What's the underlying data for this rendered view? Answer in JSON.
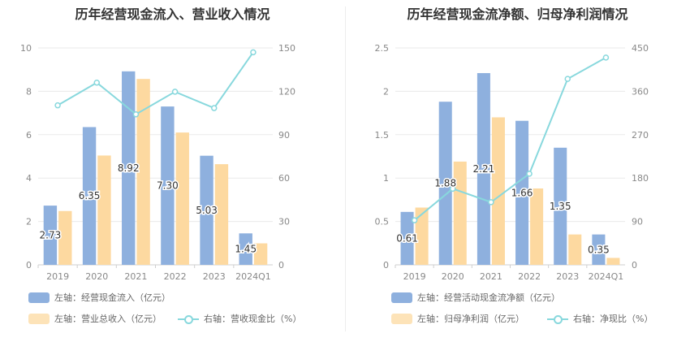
{
  "charts": [
    {
      "title": "历年经营现金流入、营业收入情况",
      "chart_data": {
        "type": "bar",
        "categories": [
          "2019",
          "2020",
          "2021",
          "2022",
          "2023",
          "2024Q1"
        ],
        "left_axis": {
          "ylim": [
            0,
            10
          ],
          "ticks": [
            "0",
            "2",
            "4",
            "6",
            "8",
            "10"
          ]
        },
        "right_axis": {
          "ylim": [
            0,
            150
          ],
          "ticks": [
            "0",
            "30",
            "60",
            "90",
            "120",
            "150"
          ]
        },
        "series": [
          {
            "name": "左轴：经营现金流入（亿元）",
            "type": "bar",
            "axis": "left",
            "color": "#8eb0de",
            "values": [
              2.73,
              6.35,
              8.92,
              7.3,
              5.03,
              1.45
            ],
            "labels": [
              "2.73",
              "6.35",
              "8.92",
              "7.30",
              "5.03",
              "1.45"
            ]
          },
          {
            "name": "左轴：营业总收入（亿元）",
            "type": "bar",
            "axis": "left",
            "color": "#fdd9a0",
            "values": [
              2.48,
              5.04,
              8.57,
              6.1,
              4.64,
              0.99
            ]
          },
          {
            "name": "右轴：营收现金比（%）",
            "type": "line",
            "axis": "right",
            "color": "#88d8dd",
            "values": [
              110.3,
              126.0,
              104.1,
              119.7,
              108.4,
              147.0
            ]
          }
        ]
      }
    },
    {
      "title": "历年经营现金流净额、归母净利润情况",
      "chart_data": {
        "type": "bar",
        "categories": [
          "2019",
          "2020",
          "2021",
          "2022",
          "2023",
          "2024Q1"
        ],
        "left_axis": {
          "ylim": [
            0,
            2.5
          ],
          "ticks": [
            "0",
            "0.5",
            "1",
            "1.5",
            "2",
            "2.5"
          ]
        },
        "right_axis": {
          "ylim": [
            0,
            450
          ],
          "ticks": [
            "0",
            "90",
            "180",
            "270",
            "360",
            "450"
          ]
        },
        "series": [
          {
            "name": "左轴：经营活动现金流净额（亿元）",
            "type": "bar",
            "axis": "left",
            "color": "#8eb0de",
            "values": [
              0.61,
              1.88,
              2.21,
              1.66,
              1.35,
              0.35
            ],
            "labels": [
              "0.61",
              "1.88",
              "2.21",
              "1.66",
              "1.35",
              "0.35"
            ]
          },
          {
            "name": "左轴：归母净利润（亿元）",
            "type": "bar",
            "axis": "left",
            "color": "#fdd9a0",
            "values": [
              0.66,
              1.19,
              1.7,
              0.88,
              0.35,
              0.08
            ]
          },
          {
            "name": "右轴：净现比（%）",
            "type": "line",
            "axis": "right",
            "color": "#88d8dd",
            "values": [
              92.4,
              157.9,
              130.0,
              189.0,
              385.7,
              430.0
            ]
          }
        ]
      }
    }
  ]
}
